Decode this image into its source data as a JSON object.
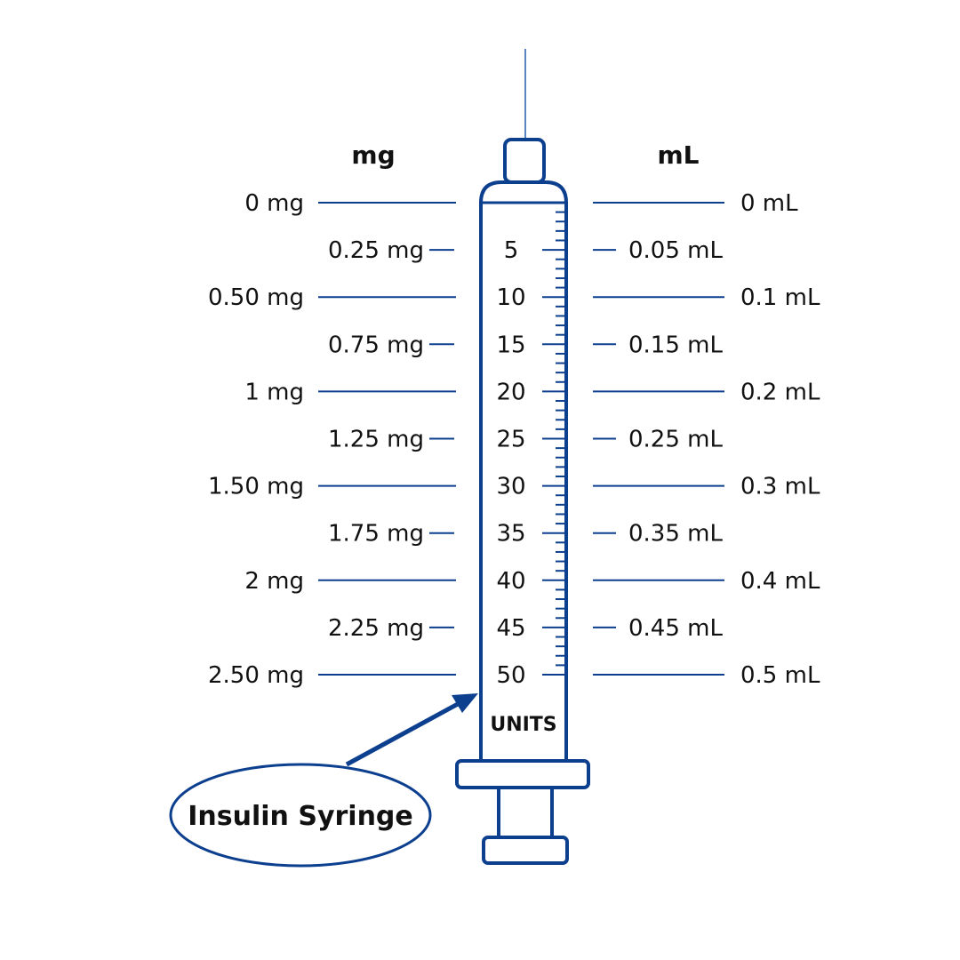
{
  "headers": {
    "left": "mg",
    "right": "mL"
  },
  "units_label": "UNITS",
  "callout_label": "Insulin Syringe",
  "colors": {
    "outline": "#0d3f8f",
    "needle": "#5b86c0",
    "text": "#111111"
  },
  "scale": {
    "units_min": 0,
    "units_max": 50,
    "minor_tick_step": 1
  },
  "marks": [
    {
      "units": 0,
      "unit_label": "",
      "mg": "0 mg",
      "ml": "0 mL",
      "major": true
    },
    {
      "units": 5,
      "unit_label": "5",
      "mg": "0.25 mg",
      "ml": "0.05 mL",
      "major": false
    },
    {
      "units": 10,
      "unit_label": "10",
      "mg": "0.50 mg",
      "ml": "0.1 mL",
      "major": true
    },
    {
      "units": 15,
      "unit_label": "15",
      "mg": "0.75 mg",
      "ml": "0.15 mL",
      "major": false
    },
    {
      "units": 20,
      "unit_label": "20",
      "mg": "1 mg",
      "ml": "0.2 mL",
      "major": true
    },
    {
      "units": 25,
      "unit_label": "25",
      "mg": "1.25 mg",
      "ml": "0.25 mL",
      "major": false
    },
    {
      "units": 30,
      "unit_label": "30",
      "mg": "1.50 mg",
      "ml": "0.3 mL",
      "major": true
    },
    {
      "units": 35,
      "unit_label": "35",
      "mg": "1.75 mg",
      "ml": "0.35 mL",
      "major": false
    },
    {
      "units": 40,
      "unit_label": "40",
      "mg": "2 mg",
      "ml": "0.4 mL",
      "major": true
    },
    {
      "units": 45,
      "unit_label": "45",
      "mg": "2.25 mg",
      "ml": "0.45 mL",
      "major": false
    },
    {
      "units": 50,
      "unit_label": "50",
      "mg": "2.50 mg",
      "ml": "0.5 mL",
      "major": true
    }
  ]
}
